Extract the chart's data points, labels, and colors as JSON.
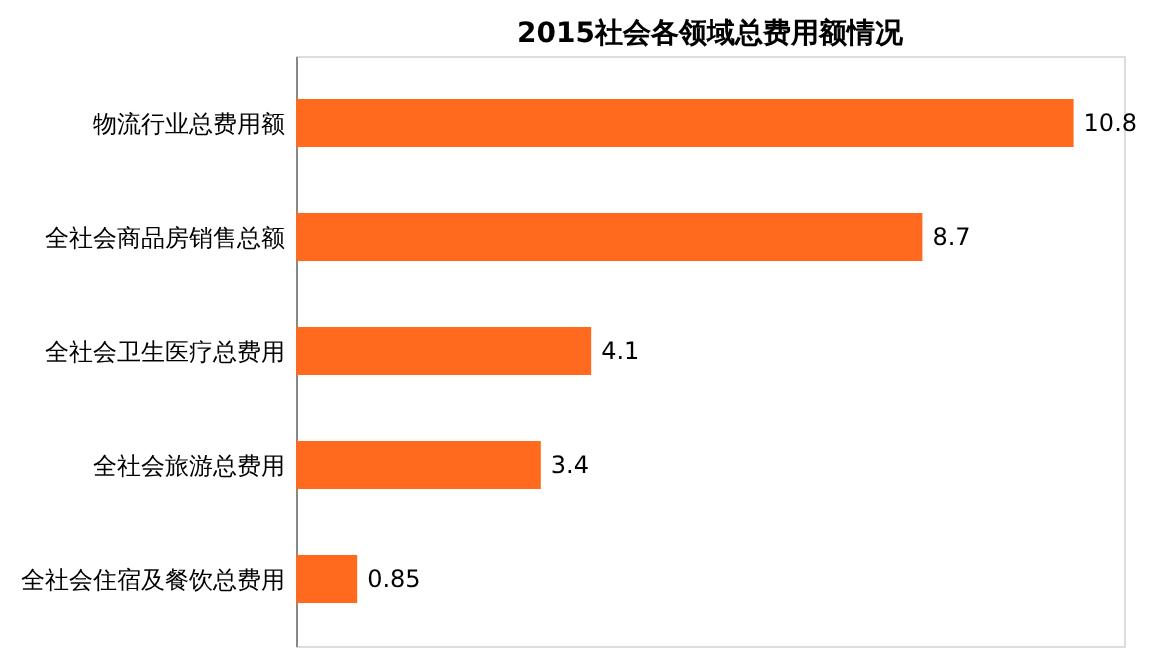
{
  "chart_data": {
    "type": "bar",
    "orientation": "horizontal",
    "title": "2015社会各领域总费用额情况",
    "categories": [
      "物流行业总费用额",
      "全社会商品房销售总额",
      "全社会卫生医疗总费用",
      "全社会旅游总费用",
      "全社会住宿及餐饮总费用"
    ],
    "values": [
      10.8,
      8.7,
      4.1,
      3.4,
      0.85
    ],
    "color": "#ff6a1f",
    "xlim": [
      0,
      11.5
    ],
    "data_labels": true
  }
}
